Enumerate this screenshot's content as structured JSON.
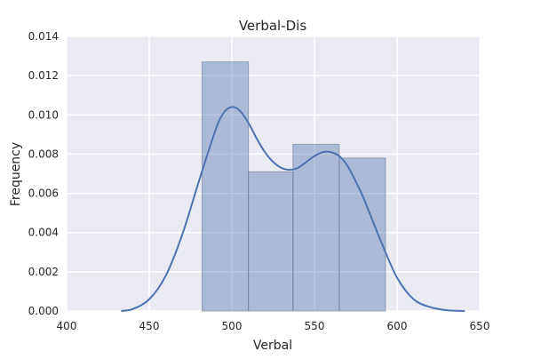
{
  "chart_data": {
    "type": "bar",
    "title": "Verbal-Dis",
    "xlabel": "Verbal",
    "ylabel": "Frequency",
    "xlim": [
      400,
      650
    ],
    "ylim": [
      0,
      0.014
    ],
    "x_ticks": [
      400,
      450,
      500,
      550,
      600,
      650
    ],
    "y_ticks": [
      0,
      0.002,
      0.004,
      0.006,
      0.008,
      0.01,
      0.012,
      0.014
    ],
    "x_tick_labels": [
      "400",
      "450",
      "500",
      "550",
      "600",
      "650"
    ],
    "y_tick_labels": [
      "0.000",
      "0.002",
      "0.004",
      "0.006",
      "0.008",
      "0.010",
      "0.012",
      "0.014"
    ],
    "grid": true,
    "bins": [
      {
        "x0": 482,
        "x1": 510,
        "value": 0.0127
      },
      {
        "x0": 510,
        "x1": 537,
        "value": 0.0071
      },
      {
        "x0": 537,
        "x1": 565,
        "value": 0.0085
      },
      {
        "x0": 565,
        "x1": 593,
        "value": 0.0078
      }
    ],
    "kde": {
      "x": [
        433,
        440,
        450,
        460,
        470,
        480,
        490,
        495,
        500,
        505,
        510,
        515,
        520,
        525,
        530,
        535,
        540,
        545,
        550,
        555,
        560,
        565,
        570,
        575,
        580,
        590,
        600,
        610,
        620,
        630,
        641
      ],
      "y": [
        0.0,
        0.0001,
        0.0006,
        0.0018,
        0.0039,
        0.0066,
        0.0092,
        0.0101,
        0.0104,
        0.0102,
        0.0096,
        0.0088,
        0.0081,
        0.0076,
        0.0073,
        0.0072,
        0.0073,
        0.0076,
        0.0079,
        0.0081,
        0.0081,
        0.0079,
        0.0074,
        0.0066,
        0.0057,
        0.0036,
        0.0017,
        0.0006,
        0.0002,
        4e-05,
        0.0
      ]
    },
    "colors": {
      "background": "#eaeaf2",
      "bar_fill": "#4c72b0",
      "kde_line": "#4c72b0",
      "grid": "#ffffff"
    }
  }
}
